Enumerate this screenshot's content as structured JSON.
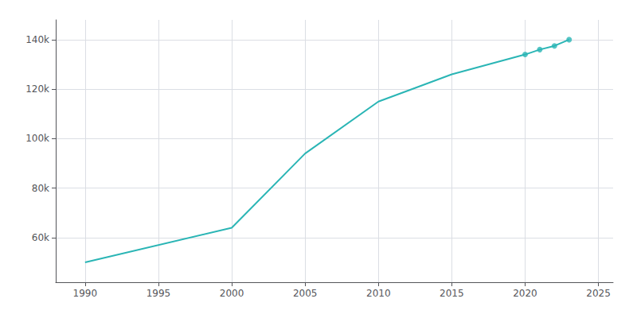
{
  "chart_data": {
    "type": "line",
    "x": [
      1990,
      2000,
      2005,
      2010,
      2015,
      2020,
      2021,
      2022,
      2023
    ],
    "series": [
      {
        "type": "line",
        "color": "#2ab5b5",
        "marker": "none",
        "values": [
          50000,
          64000,
          94000,
          115000,
          126000,
          134000,
          136000,
          137500,
          140000
        ]
      },
      {
        "type": "scatter",
        "color": "#2ab5b5",
        "marker": "circle",
        "values": [
          null,
          null,
          null,
          null,
          null,
          134000,
          136000,
          137500,
          140000
        ]
      }
    ],
    "xlim": [
      1988,
      2026
    ],
    "xticks": [
      1990,
      1995,
      2000,
      2005,
      2010,
      2015,
      2020,
      2025
    ],
    "ylim": [
      42000,
      148000
    ],
    "yticks": [
      {
        "value": 60000,
        "label": "60k"
      },
      {
        "value": 80000,
        "label": "80k"
      },
      {
        "value": 100000,
        "label": "100k"
      },
      {
        "value": 120000,
        "label": "120k"
      },
      {
        "value": 140000,
        "label": "140k"
      }
    ],
    "grid": true
  }
}
